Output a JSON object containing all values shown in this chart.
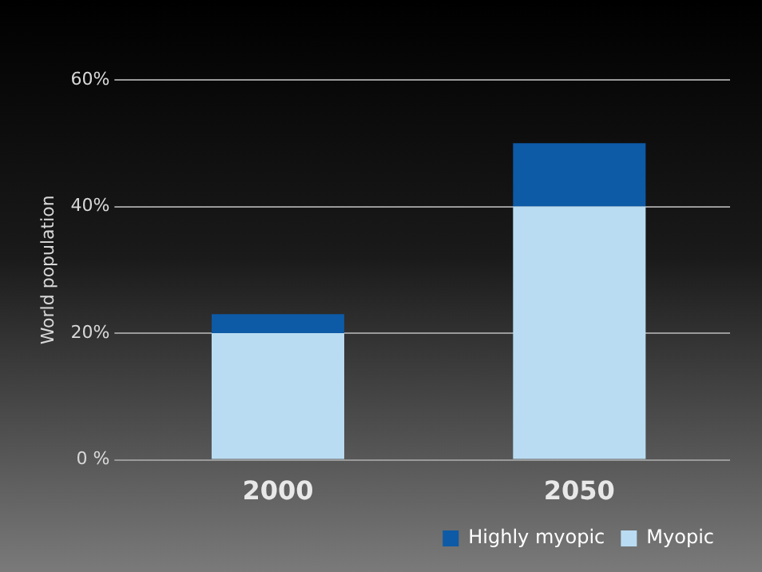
{
  "chart_data": {
    "type": "bar",
    "ylabel": "World population",
    "categories": [
      "2000",
      "2050"
    ],
    "series": [
      {
        "name": "Myopic",
        "color": "#b9dcf2",
        "values": [
          20,
          40
        ]
      },
      {
        "name": "Highly myopic",
        "color": "#0d5aa7",
        "values": [
          3,
          10
        ]
      }
    ],
    "stacked": true,
    "ylim": [
      0,
      60
    ],
    "yticks": [
      {
        "value": 0,
        "label": "0 %"
      },
      {
        "value": 20,
        "label": "20%"
      },
      {
        "value": 40,
        "label": "40%"
      },
      {
        "value": 60,
        "label": "60%"
      }
    ],
    "grid": "y",
    "legend": "bottom right"
  }
}
